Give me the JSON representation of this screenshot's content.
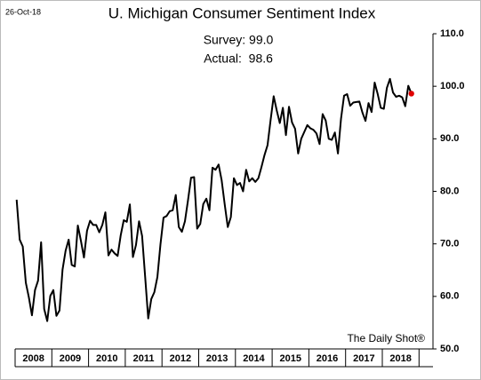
{
  "chart_data": {
    "type": "line",
    "title": "U. Michigan Consumer Sentiment Index",
    "date_label": "26-Oct-18",
    "annotations": [
      "Survey: 99.0",
      "Actual:  98.6"
    ],
    "source": "The Daily Shot®",
    "year_labels": [
      "2008",
      "2009",
      "2010",
      "2011",
      "2012",
      "2013",
      "2014",
      "2015",
      "2016",
      "2017",
      "2018"
    ],
    "series": [
      {
        "name": "Consumer Sentiment",
        "color": "#000000",
        "last_point_color": "#e00000",
        "values": [
          78.4,
          70.8,
          69.5,
          62.6,
          59.8,
          56.4,
          61.2,
          63.0,
          70.3,
          57.6,
          55.3,
          60.1,
          61.2,
          56.3,
          57.3,
          65.1,
          68.7,
          70.8,
          66.0,
          65.7,
          73.5,
          70.6,
          67.4,
          72.5,
          74.4,
          73.6,
          73.6,
          72.2,
          73.6,
          76.0,
          67.8,
          68.9,
          68.2,
          67.7,
          71.6,
          74.5,
          74.2,
          77.5,
          67.5,
          69.8,
          74.3,
          71.5,
          63.7,
          55.8,
          59.5,
          60.8,
          63.7,
          69.9,
          75.0,
          75.3,
          76.2,
          76.4,
          79.3,
          73.2,
          72.3,
          74.3,
          78.3,
          82.6,
          82.7,
          72.9,
          73.8,
          77.6,
          78.6,
          76.4,
          84.5,
          84.1,
          85.1,
          82.1,
          77.5,
          73.2,
          75.1,
          82.5,
          81.2,
          81.6,
          80.0,
          84.1,
          81.9,
          82.5,
          81.8,
          82.5,
          84.6,
          86.9,
          88.8,
          93.6,
          98.1,
          95.4,
          93.0,
          95.9,
          90.7,
          96.1,
          93.1,
          91.9,
          87.2,
          90.0,
          91.3,
          92.6,
          92.0,
          91.7,
          91.0,
          89.0,
          94.7,
          93.5,
          90.0,
          89.8,
          91.2,
          87.2,
          93.8,
          98.2,
          98.5,
          96.3,
          96.9,
          97.0,
          97.1,
          95.0,
          93.4,
          96.8,
          95.1,
          100.7,
          98.5,
          95.9,
          95.7,
          99.7,
          101.4,
          98.8,
          98.0,
          98.2,
          97.9,
          96.2,
          100.1,
          98.6
        ]
      }
    ],
    "ylim": [
      50,
      110
    ],
    "yticks": [
      {
        "value": 50,
        "label": "50.0"
      },
      {
        "value": 60,
        "label": "60.0"
      },
      {
        "value": 70,
        "label": "70.0"
      },
      {
        "value": 80,
        "label": "80.0"
      },
      {
        "value": 90,
        "label": "90.0"
      },
      {
        "value": 100,
        "label": "100.0"
      },
      {
        "value": 110,
        "label": "110.0"
      }
    ],
    "grid": false
  }
}
